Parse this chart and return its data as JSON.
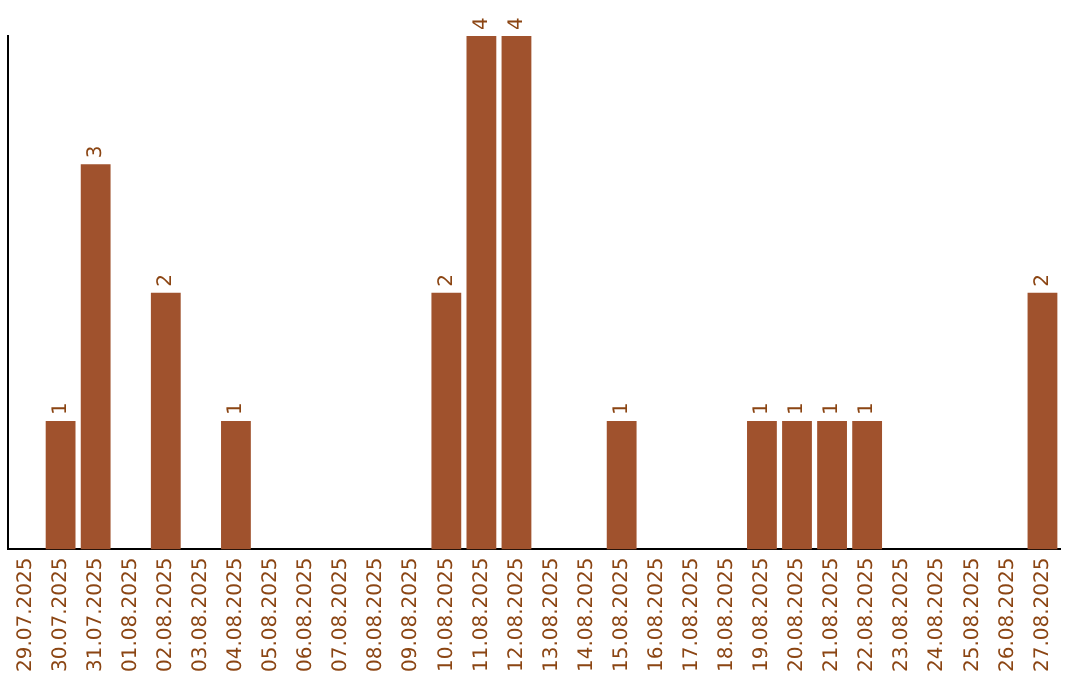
{
  "chart_data": {
    "type": "bar",
    "categories": [
      "29.07.2025",
      "30.07.2025",
      "31.07.2025",
      "01.08.2025",
      "02.08.2025",
      "03.08.2025",
      "04.08.2025",
      "05.08.2025",
      "06.08.2025",
      "07.08.2025",
      "08.08.2025",
      "09.08.2025",
      "10.08.2025",
      "11.08.2025",
      "12.08.2025",
      "13.08.2025",
      "14.08.2025",
      "15.08.2025",
      "16.08.2025",
      "17.08.2025",
      "18.08.2025",
      "19.08.2025",
      "20.08.2025",
      "21.08.2025",
      "22.08.2025",
      "23.08.2025",
      "24.08.2025",
      "25.08.2025",
      "26.08.2025",
      "27.08.2025"
    ],
    "values": [
      0,
      1,
      3,
      0,
      2,
      0,
      1,
      0,
      0,
      0,
      0,
      0,
      2,
      4,
      4,
      0,
      0,
      1,
      0,
      0,
      0,
      1,
      1,
      1,
      1,
      0,
      0,
      0,
      0,
      2
    ],
    "value_labels": [
      null,
      "1",
      "3",
      null,
      "2",
      null,
      "1",
      null,
      null,
      null,
      null,
      null,
      "2",
      "4",
      "4",
      null,
      null,
      "1",
      null,
      null,
      null,
      "1",
      "1",
      "1",
      "1",
      null,
      null,
      null,
      null,
      "2"
    ],
    "color": "#a0522d",
    "ylim": [
      0,
      4
    ],
    "tick_labels": "x",
    "grid": false,
    "legend": false
  }
}
